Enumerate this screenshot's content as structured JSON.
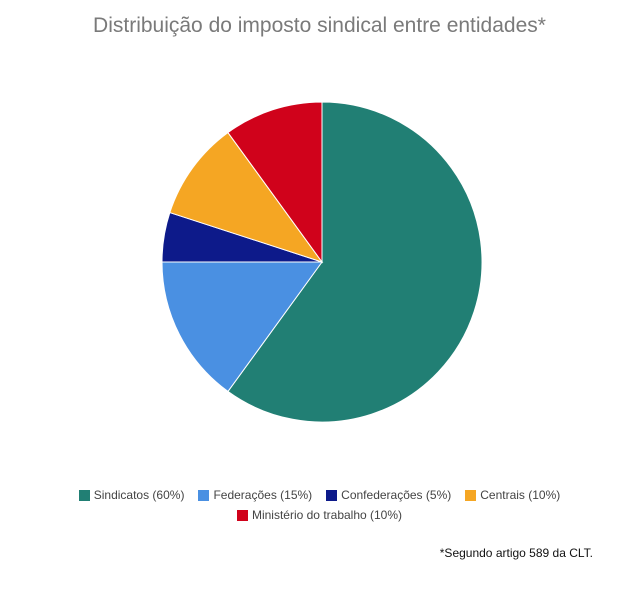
{
  "chart_data": {
    "type": "pie",
    "title": "Distribuição do imposto sindical entre entidades*",
    "slices": [
      {
        "label": "Sindicatos (60%)",
        "value": 60,
        "color": "#217f74"
      },
      {
        "label": "Federações (15%)",
        "value": 15,
        "color": "#4a90e2"
      },
      {
        "label": "Confederações (5%)",
        "value": 5,
        "color": "#0d1a8a"
      },
      {
        "label": "Centrais (10%)",
        "value": 10,
        "color": "#f5a623"
      },
      {
        "label": "Ministério do trabalho (10%)",
        "value": 10,
        "color": "#d0021b"
      }
    ],
    "legend_position": "bottom"
  },
  "footnote": "*Segundo artigo 589 da CLT."
}
